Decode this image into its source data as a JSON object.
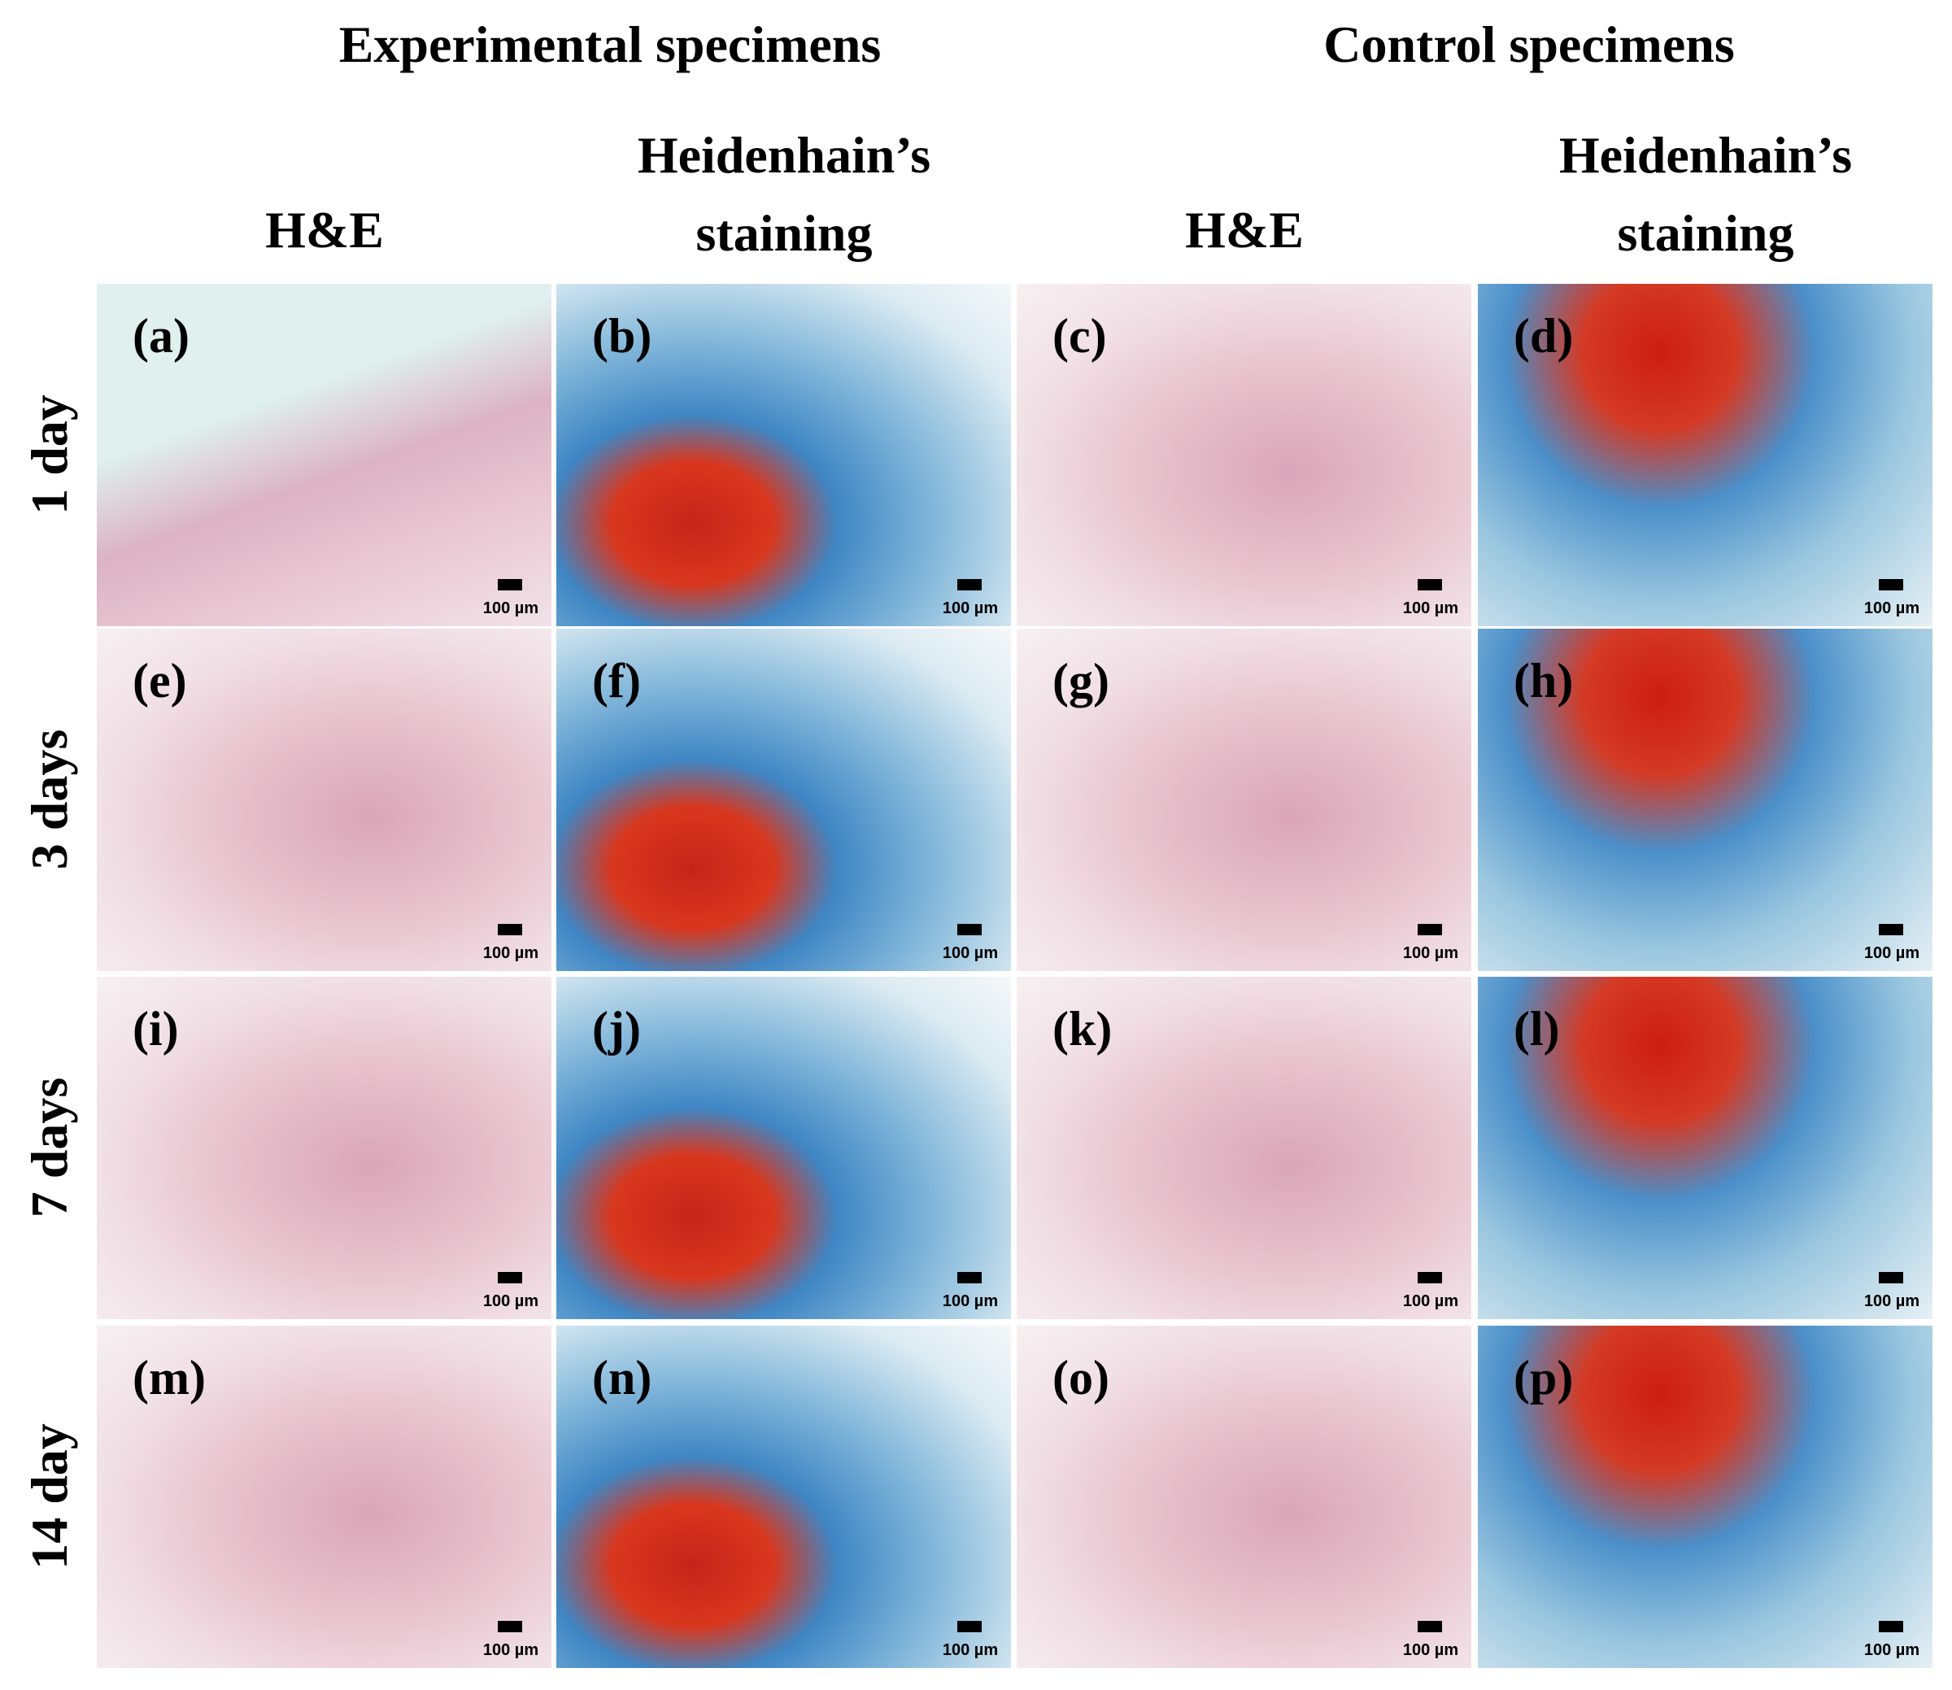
{
  "groups": [
    "Experimental specimens",
    "Control specimens"
  ],
  "columns": [
    [
      "H&E"
    ],
    [
      "Heidenhain’s",
      "staining"
    ],
    [
      "H&E"
    ],
    [
      "Heidenhain’s",
      "staining"
    ]
  ],
  "rows": [
    "1 day",
    "3 days",
    "7 days",
    "14 day"
  ],
  "panels": [
    {
      "label": "(a)",
      "scale": "100 µm"
    },
    {
      "label": "(b)",
      "scale": "100 µm"
    },
    {
      "label": "(c)",
      "scale": "100 µm"
    },
    {
      "label": "(d)",
      "scale": "100 µm"
    },
    {
      "label": "(e)",
      "scale": "100 µm"
    },
    {
      "label": "(f)",
      "scale": "100 µm"
    },
    {
      "label": "(g)",
      "scale": "100 µm"
    },
    {
      "label": "(h)",
      "scale": "100 µm"
    },
    {
      "label": "(i)",
      "scale": "100 µm"
    },
    {
      "label": "(j)",
      "scale": "100 µm"
    },
    {
      "label": "(k)",
      "scale": "100 µm"
    },
    {
      "label": "(l)",
      "scale": "100 µm"
    },
    {
      "label": "(m)",
      "scale": "100 µm"
    },
    {
      "label": "(n)",
      "scale": "100 µm"
    },
    {
      "label": "(o)",
      "scale": "100 µm"
    },
    {
      "label": "(p)",
      "scale": "100 µm"
    }
  ]
}
